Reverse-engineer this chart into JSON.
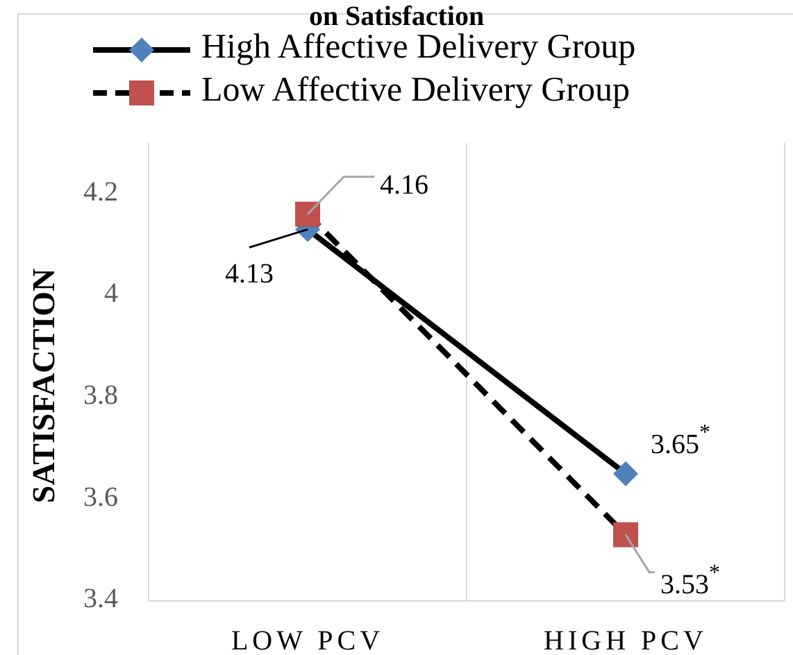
{
  "chart_data": {
    "type": "line",
    "title": "on Satisfaction",
    "ylabel": "SATISFACTION",
    "categories": [
      "LOW PCV",
      "HIGH PCV"
    ],
    "series": [
      {
        "name": "High Affective Delivery Group",
        "color": "#4f81bd",
        "values": [
          4.13,
          3.65
        ],
        "marker": "diamond",
        "line_style": "solid",
        "value_labels": [
          "4.13",
          "3.65$^{*}$"
        ]
      },
      {
        "name": "Low Affective Delivery Group",
        "color": "#c0504d",
        "values": [
          4.16,
          3.53
        ],
        "marker": "square",
        "line_style": "dashed",
        "value_labels": [
          "4.16",
          "3.53$^{*}$"
        ]
      }
    ],
    "ylim": [
      3.4,
      4.3
    ],
    "yticks": [
      3.4,
      3.6,
      3.8,
      {
        "value": 4,
        "label": "4"
      },
      4.2
    ],
    "grid": "x",
    "legend": "top"
  }
}
